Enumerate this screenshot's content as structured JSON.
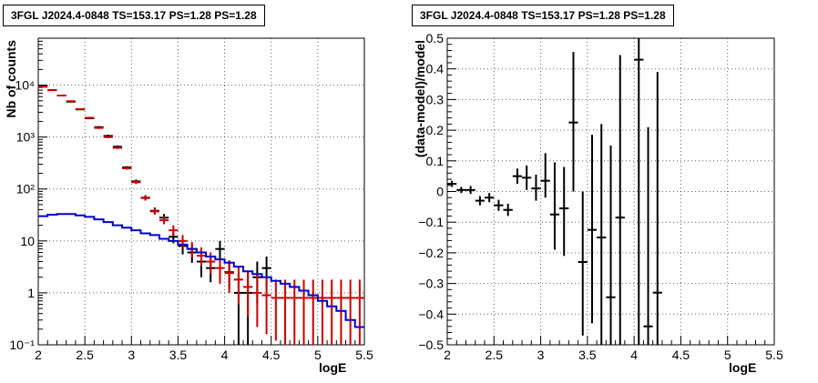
{
  "chart_data": [
    {
      "type": "histogram",
      "title": "3FGL J2024.4-0848 TS=153.17 PS=1.28 PS=1.28",
      "xlabel": "logE",
      "ylabel": "Nb of counts",
      "xlim": [
        2,
        5.5
      ],
      "ylim": [
        0.1,
        80000
      ],
      "yscale": "log",
      "grid": true,
      "xticks": [
        2,
        2.5,
        3,
        3.5,
        4,
        4.5,
        5,
        5.5
      ],
      "xtick_labels": [
        "2",
        "2.5",
        "3",
        "3.5",
        "4",
        "4.5",
        "5",
        "5.5"
      ],
      "yticks": [
        0.1,
        1,
        10,
        100,
        1000,
        10000
      ],
      "ytick_labels": [
        "10⁻¹",
        "1",
        "10",
        "10²",
        "10³",
        "10⁴"
      ],
      "series": [
        {
          "role": "data",
          "color": "#000000",
          "x": [
            2.05,
            2.15,
            2.25,
            2.35,
            2.45,
            2.55,
            2.65,
            2.75,
            2.85,
            2.95,
            3.05,
            3.15,
            3.25,
            3.35,
            3.45,
            3.55,
            3.65,
            3.75,
            3.85,
            3.95,
            4.05,
            4.15,
            4.25,
            4.35,
            4.45
          ],
          "y": [
            9500,
            8000,
            6300,
            4800,
            3400,
            2300,
            1550,
            1050,
            650,
            260,
            140,
            68,
            38,
            28,
            12,
            8,
            6,
            4,
            3,
            7,
            2.5,
            1,
            1,
            2,
            3
          ],
          "ylow": [
            9300,
            7800,
            6150,
            4650,
            3300,
            2200,
            1480,
            990,
            610,
            245,
            128,
            60,
            32,
            23,
            9,
            5.5,
            3.8,
            2,
            1.6,
            4.5,
            1.2,
            0.1,
            0.1,
            0.6,
            1.2
          ],
          "yhigh": [
            9700,
            8200,
            6450,
            4950,
            3500,
            2400,
            1620,
            1110,
            690,
            275,
            152,
            76,
            44,
            33,
            15,
            11,
            8.5,
            6.5,
            5,
            10,
            4.2,
            2.5,
            2.5,
            4,
            5
          ]
        },
        {
          "role": "model",
          "color": "#cc0000",
          "x": [
            2.05,
            2.15,
            2.25,
            2.35,
            2.45,
            2.55,
            2.65,
            2.75,
            2.85,
            2.95,
            3.05,
            3.15,
            3.25,
            3.35,
            3.45,
            3.55,
            3.65,
            3.75,
            3.85,
            3.95,
            4.05,
            4.15,
            4.25,
            4.35,
            4.45,
            4.55,
            4.65,
            4.75,
            4.85,
            4.95,
            5.05,
            5.15,
            5.25,
            5.35,
            5.45
          ],
          "y": [
            9300,
            8000,
            6300,
            4900,
            3450,
            2350,
            1500,
            1000,
            620,
            250,
            135,
            67,
            37,
            25,
            16,
            10,
            7,
            5.2,
            4,
            3,
            2.4,
            1.8,
            1.3,
            1,
            0.9,
            0.8,
            0.8,
            0.8,
            0.8,
            0.8,
            0.8,
            0.8,
            0.8,
            0.8,
            0.8
          ],
          "ylow": [
            9100,
            7800,
            6150,
            4750,
            3350,
            2250,
            1430,
            950,
            590,
            235,
            124,
            60,
            32,
            21,
            12.5,
            7.5,
            4.8,
            3.3,
            2.3,
            1.5,
            1,
            0.6,
            0.35,
            0.22,
            0.16,
            0.12,
            0.1,
            0.1,
            0.1,
            0.1,
            0.1,
            0.1,
            0.1,
            0.1,
            0.1
          ],
          "yhigh": [
            9500,
            8200,
            6450,
            5050,
            3550,
            2450,
            1570,
            1050,
            650,
            265,
            146,
            74,
            42,
            30,
            20,
            13,
            9.5,
            7.5,
            6,
            4.6,
            4,
            3.2,
            2.6,
            2.2,
            2,
            1.8,
            1.8,
            1.8,
            1.8,
            1.8,
            1.8,
            1.8,
            1.8,
            1.8,
            1.8
          ]
        },
        {
          "role": "background",
          "color": "#0000cc",
          "edges": [
            2,
            2.1,
            2.2,
            2.3,
            2.4,
            2.5,
            2.6,
            2.7,
            2.8,
            2.9,
            3,
            3.1,
            3.2,
            3.3,
            3.4,
            3.5,
            3.6,
            3.7,
            3.8,
            3.9,
            4,
            4.1,
            4.2,
            4.3,
            4.4,
            4.5,
            4.6,
            4.7,
            4.8,
            4.9,
            5,
            5.1,
            5.2,
            5.3,
            5.4,
            5.5
          ],
          "values": [
            30,
            32,
            33,
            33,
            31,
            29,
            26,
            23,
            20,
            18,
            16,
            14,
            13,
            11,
            10,
            8.5,
            7,
            6,
            5,
            4.4,
            3.8,
            3.2,
            2.6,
            2.3,
            2,
            1.7,
            1.5,
            1.3,
            1.1,
            0.9,
            0.7,
            0.55,
            0.45,
            0.3,
            0.22
          ]
        }
      ]
    },
    {
      "type": "scatter",
      "title": "3FGL J2024.4-0848 TS=153.17 PS=1.28 PS=1.28",
      "xlabel": "logE",
      "ylabel": "(data-model)/model",
      "xlim": [
        2,
        5.5
      ],
      "ylim": [
        -0.5,
        0.5
      ],
      "grid": true,
      "xticks": [
        2,
        2.5,
        3,
        3.5,
        4,
        4.5,
        5,
        5.5
      ],
      "xtick_labels": [
        "2",
        "2.5",
        "3",
        "3.5",
        "4",
        "4.5",
        "5",
        "5.5"
      ],
      "yticks": [
        -0.5,
        -0.4,
        -0.3,
        -0.2,
        -0.1,
        0,
        0.1,
        0.2,
        0.3,
        0.4,
        0.5
      ],
      "ytick_labels": [
        "−0.5",
        "−0.4",
        "−0.3",
        "−0.2",
        "−0.1",
        "0",
        "0.1",
        "0.2",
        "0.3",
        "0.4",
        "0.5"
      ],
      "series": [
        {
          "role": "residuals",
          "color": "#000000",
          "x": [
            2.05,
            2.15,
            2.25,
            2.35,
            2.45,
            2.55,
            2.65,
            2.75,
            2.85,
            2.95,
            3.05,
            3.15,
            3.25,
            3.35,
            3.45,
            3.55,
            3.65,
            3.75,
            3.85,
            4.05,
            4.15,
            4.25
          ],
          "y": [
            0.025,
            0.005,
            0.005,
            -0.03,
            -0.02,
            -0.045,
            -0.06,
            0.05,
            0.045,
            0.01,
            0.035,
            -0.075,
            -0.055,
            0.225,
            -0.23,
            -0.125,
            -0.15,
            -0.345,
            -0.085,
            0.43,
            -0.44,
            -0.33
          ],
          "ylow": [
            0.015,
            -0.005,
            -0.008,
            -0.045,
            -0.035,
            -0.063,
            -0.08,
            0.025,
            0.005,
            -0.03,
            -0.02,
            -0.19,
            -0.21,
            0.0,
            -0.47,
            -0.43,
            -0.5,
            -0.5,
            -0.5,
            -0.5,
            -0.5,
            -0.5
          ],
          "yhigh": [
            0.035,
            0.015,
            0.018,
            -0.015,
            -0.005,
            -0.027,
            -0.04,
            0.075,
            0.085,
            0.055,
            0.125,
            0.095,
            0.08,
            0.455,
            0.0,
            0.185,
            0.22,
            0.15,
            0.445,
            0.5,
            0.21,
            0.39
          ]
        }
      ]
    }
  ]
}
